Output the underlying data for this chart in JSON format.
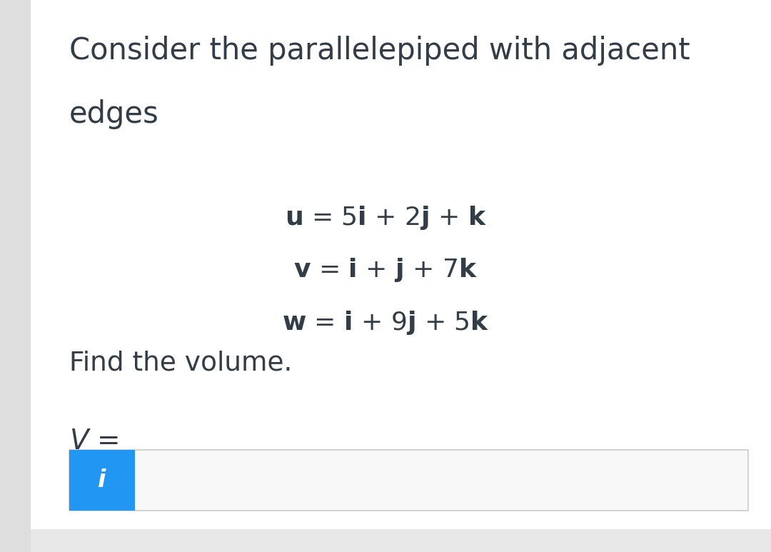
{
  "background_color": "#f2f2f2",
  "card_color": "#ffffff",
  "text_color": "#333d47",
  "info_box_color": "#2196F3",
  "input_box_border": "#cccccc",
  "input_box_fill": "#f5f5f5",
  "left_bar_color": "#dedede",
  "title_line1": "Consider the parallelepiped with adjacent",
  "title_line2": "edges",
  "eq_u": "$\\mathbf{u}$ = 5$\\mathbf{i}$ + 2$\\mathbf{j}$ + $\\mathbf{k}$",
  "eq_v": "$\\mathbf{v}$ = $\\mathbf{i}$ + $\\mathbf{j}$ + 7$\\mathbf{k}$",
  "eq_w": "$\\mathbf{w}$ = $\\mathbf{i}$ + 9$\\mathbf{j}$ + 5$\\mathbf{k}$",
  "find_text": "Find the volume.",
  "v_label": "$V$ =",
  "title_fontsize": 30,
  "eq_fontsize": 26,
  "find_fontsize": 27,
  "v_fontsize": 28,
  "info_icon": "i"
}
